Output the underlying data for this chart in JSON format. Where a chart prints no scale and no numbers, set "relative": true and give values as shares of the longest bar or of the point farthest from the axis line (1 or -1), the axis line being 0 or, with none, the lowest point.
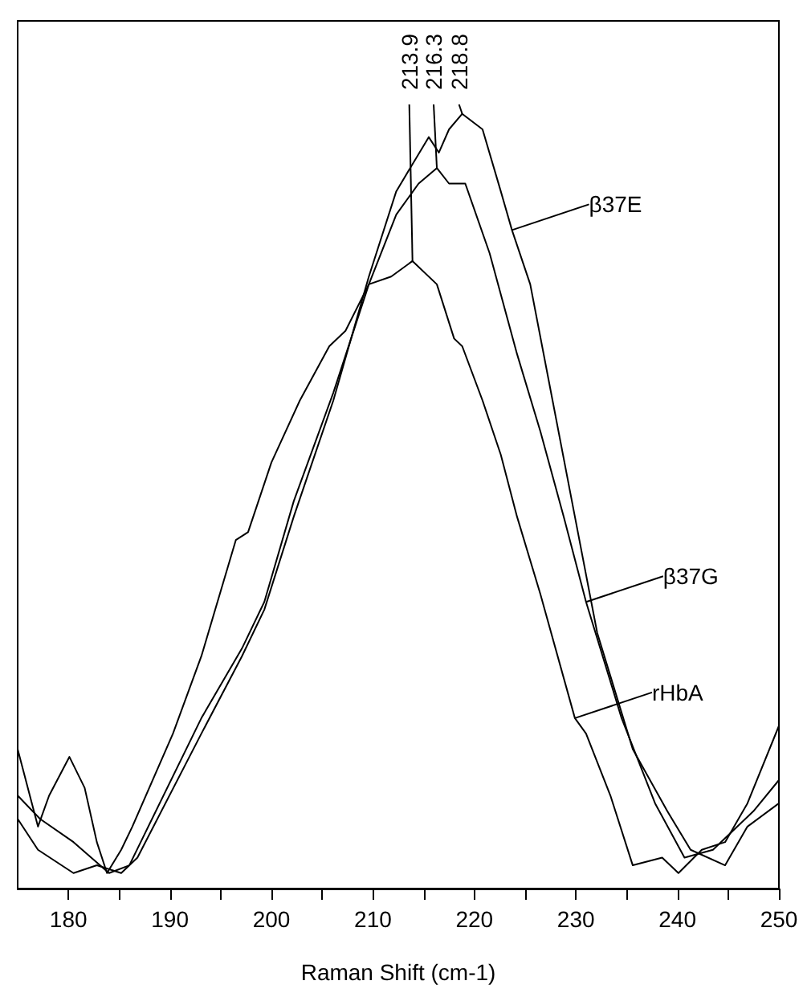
{
  "chart_data": {
    "type": "line",
    "xlabel": "Raman Shift (cm-1)",
    "relative": true,
    "xlim": [
      175,
      250
    ],
    "xticks": [
      180,
      {
        "value": 185,
        "label": null
      },
      190,
      {
        "value": 195,
        "label": null
      },
      200,
      {
        "value": 205,
        "label": null
      },
      210,
      {
        "value": 215,
        "label": null
      },
      220,
      {
        "value": 225,
        "label": null
      },
      230,
      {
        "value": 235,
        "label": null
      },
      240,
      {
        "value": 245,
        "label": null
      },
      250
    ],
    "grid": false,
    "legend": "right",
    "marker": "none",
    "line_style": "solid",
    "series": [
      {
        "name": "β37E",
        "color": "#000000",
        "x": [
          175,
          177,
          180.5,
          182.8,
          185.2,
          186.8,
          193.1,
          197.1,
          199.3,
          202.2,
          206.1,
          209.6,
          212.3,
          215.5,
          216.5,
          217.5,
          218.8,
          220.8,
          222.6,
          223.7,
          225.5,
          227.7,
          229.9,
          232.1,
          235.6,
          239,
          241.3,
          244.7,
          246.9,
          250
        ],
        "values": [
          0.09,
          0.05,
          0.02,
          0.03,
          0.02,
          0.04,
          0.2,
          0.3,
          0.36,
          0.48,
          0.63,
          0.79,
          0.9,
          0.97,
          0.95,
          0.98,
          1.0,
          0.98,
          0.9,
          0.85,
          0.78,
          0.63,
          0.48,
          0.33,
          0.18,
          0.1,
          0.05,
          0.03,
          0.08,
          0.11
        ]
      },
      {
        "name": "β37G",
        "color": "#000000",
        "x": [
          175,
          177.2,
          180.5,
          184,
          186,
          193.1,
          197.1,
          199.3,
          202.2,
          206.1,
          209.6,
          212.3,
          214.5,
          216.3,
          217.5,
          219.1,
          221.5,
          224.2,
          226.5,
          228.8,
          231,
          234.5,
          237.8,
          240.7,
          243.5,
          247.5,
          250
        ],
        "values": [
          0.12,
          0.09,
          0.06,
          0.02,
          0.03,
          0.22,
          0.31,
          0.37,
          0.5,
          0.64,
          0.78,
          0.87,
          0.91,
          0.93,
          0.91,
          0.91,
          0.82,
          0.69,
          0.59,
          0.48,
          0.37,
          0.22,
          0.11,
          0.04,
          0.05,
          0.1,
          0.14
        ]
      },
      {
        "name": "rHbA",
        "color": "#000000",
        "x": [
          175,
          177,
          178.1,
          180.1,
          181.6,
          182.8,
          183.8,
          185.2,
          186.3,
          190.3,
          193.1,
          196.5,
          197.7,
          200,
          202.8,
          205.7,
          207.3,
          209.6,
          211.8,
          213.9,
          216.3,
          218,
          218.8,
          220.8,
          222.6,
          224.2,
          226.5,
          229.9,
          231,
          233.4,
          235.6,
          238.5,
          240.1,
          242.4,
          244.7,
          246.9,
          250
        ],
        "values": [
          0.18,
          0.08,
          0.12,
          0.17,
          0.13,
          0.06,
          0.02,
          0.05,
          0.08,
          0.2,
          0.3,
          0.45,
          0.46,
          0.55,
          0.63,
          0.7,
          0.72,
          0.78,
          0.79,
          0.81,
          0.78,
          0.71,
          0.7,
          0.63,
          0.56,
          0.48,
          0.38,
          0.22,
          0.2,
          0.12,
          0.03,
          0.04,
          0.02,
          0.05,
          0.06,
          0.11,
          0.21
        ]
      }
    ],
    "annotations": [
      {
        "text": "213.9",
        "x": 213.9,
        "y": 0.81
      },
      {
        "text": "216.3",
        "x": 216.3,
        "y": 0.93
      },
      {
        "text": "218.8",
        "x": 218.8,
        "y": 1.0
      }
    ]
  }
}
